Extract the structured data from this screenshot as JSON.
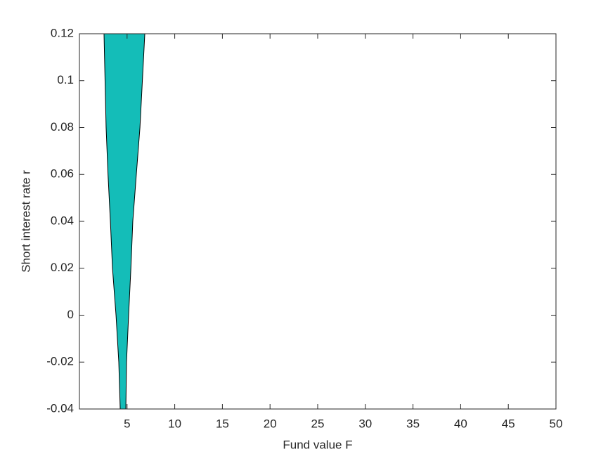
{
  "chart_data": {
    "type": "range-area",
    "xlabel": "Fund value F",
    "ylabel": "Short interest rate r",
    "xlim": [
      0,
      50
    ],
    "ylim": [
      -0.04,
      0.12
    ],
    "xticks": [
      5,
      10,
      15,
      20,
      25,
      30,
      35,
      40,
      45,
      50
    ],
    "yticks": [
      -0.04,
      -0.02,
      0,
      0.02,
      0.04,
      0.06,
      0.08,
      0.1,
      0.12
    ],
    "y": [
      0.12,
      0.08,
      0.06,
      0.04,
      0.02,
      0,
      -0.02,
      -0.04
    ],
    "x_low": [
      2.58,
      2.8,
      3.0,
      3.25,
      3.47,
      3.84,
      4.13,
      4.28
    ],
    "x_high": [
      6.86,
      6.35,
      5.97,
      5.6,
      5.4,
      5.16,
      4.94,
      4.87
    ],
    "color": "#14bdb8"
  }
}
